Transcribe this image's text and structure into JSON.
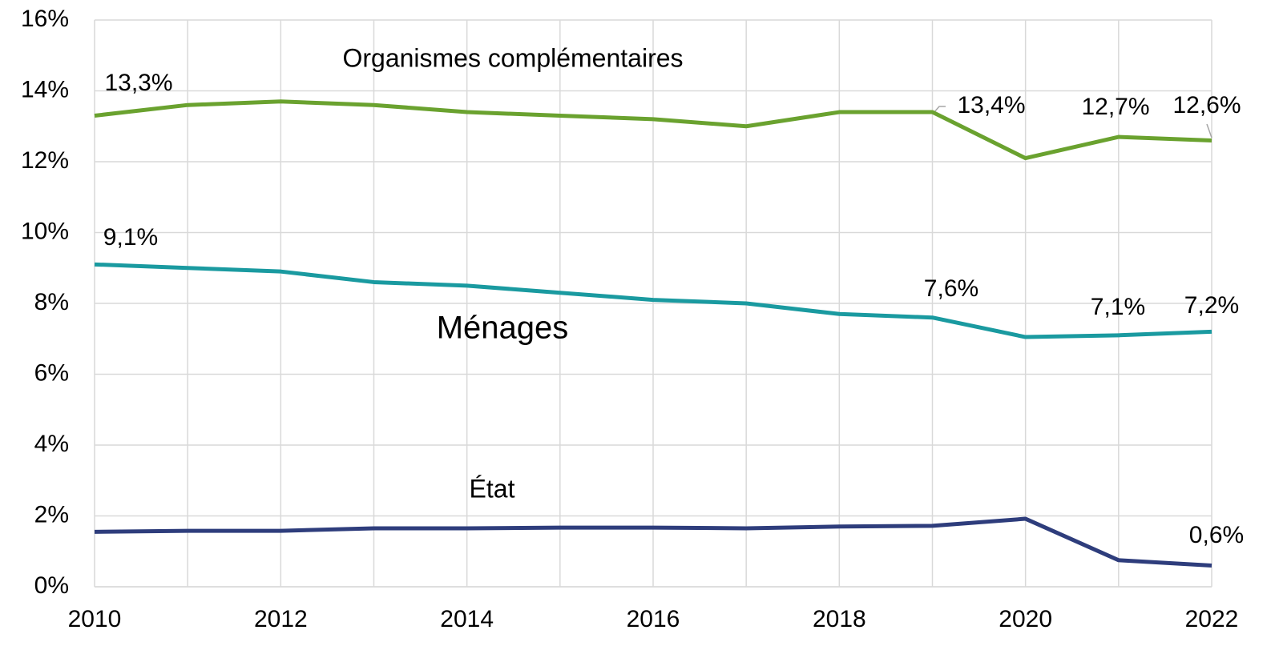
{
  "chart_data": {
    "type": "line",
    "categories": [
      "2010",
      null,
      "2012",
      null,
      "2014",
      null,
      "2016",
      null,
      "2018",
      null,
      "2020",
      null,
      "2022"
    ],
    "series": [
      {
        "name": "Organismes complémentaires",
        "color": "#6aa22f",
        "values": [
          13.3,
          13.6,
          13.7,
          13.6,
          13.4,
          13.3,
          13.2,
          13.0,
          13.4,
          13.4,
          12.1,
          12.7,
          12.6
        ],
        "value_labels": [
          "13,3%",
          null,
          null,
          null,
          null,
          null,
          null,
          null,
          null,
          "13,4%",
          null,
          "12,7%",
          "12,6%"
        ]
      },
      {
        "name": "Ménages",
        "color": "#1a9aa0",
        "values": [
          9.1,
          9.0,
          8.9,
          8.6,
          8.5,
          8.3,
          8.1,
          8.0,
          7.7,
          7.6,
          7.05,
          7.1,
          7.2
        ],
        "value_labels": [
          "9,1%",
          null,
          null,
          null,
          null,
          null,
          null,
          null,
          null,
          "7,6%",
          null,
          "7,1%",
          "7,2%"
        ]
      },
      {
        "name": "État",
        "color": "#2e3d7c",
        "values": [
          1.55,
          1.58,
          1.58,
          1.65,
          1.65,
          1.67,
          1.67,
          1.65,
          1.7,
          1.72,
          1.92,
          0.75,
          0.6
        ],
        "value_labels": [
          null,
          null,
          null,
          null,
          null,
          null,
          null,
          null,
          null,
          null,
          null,
          null,
          "0,6%"
        ]
      }
    ],
    "ylim": [
      0,
      16
    ],
    "yticks": [
      {
        "value": 0,
        "label": "0%"
      },
      {
        "value": 2,
        "label": "2%"
      },
      {
        "value": 4,
        "label": "4%"
      },
      {
        "value": 6,
        "label": "6%"
      },
      {
        "value": 8,
        "label": "8%"
      },
      {
        "value": 10,
        "label": "10%"
      },
      {
        "value": 12,
        "label": "12%"
      },
      {
        "value": 14,
        "label": "14%"
      },
      {
        "value": 16,
        "label": "16%"
      }
    ],
    "grid": true
  }
}
